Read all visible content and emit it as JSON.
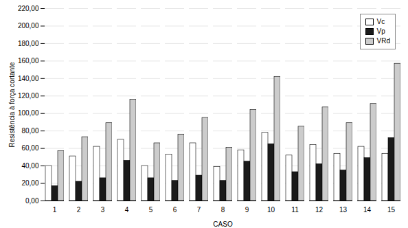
{
  "chart_data": {
    "type": "bar",
    "xlabel": "CASO",
    "ylabel": "Resistência à força cortante",
    "categories": [
      "1",
      "2",
      "3",
      "4",
      "5",
      "6",
      "7",
      "8",
      "9",
      "10",
      "11",
      "12",
      "13",
      "14",
      "15"
    ],
    "series": [
      {
        "name": "Vc",
        "color": "#ffffff",
        "values": [
          40,
          51,
          62,
          70,
          40,
          53,
          66,
          39,
          58,
          78,
          52,
          64,
          54,
          62,
          54
        ]
      },
      {
        "name": "Vp",
        "color": "#1a1a1a",
        "values": [
          17,
          22,
          26,
          46,
          26,
          23,
          29,
          23,
          45,
          65,
          33,
          42,
          35,
          49,
          72
        ]
      },
      {
        "name": "VRd",
        "color": "#cccccc",
        "values": [
          57,
          73,
          89,
          116,
          66,
          76,
          95,
          61,
          104,
          142,
          85,
          107,
          89,
          111,
          157
        ]
      }
    ],
    "ylim": [
      0,
      220
    ],
    "yticks": [
      {
        "value": 0,
        "label": "0,00"
      },
      {
        "value": 20,
        "label": "20,00"
      },
      {
        "value": 40,
        "label": "40,00"
      },
      {
        "value": 60,
        "label": "60,00"
      },
      {
        "value": 80,
        "label": "80,00"
      },
      {
        "value": 100,
        "label": "100,00"
      },
      {
        "value": 120,
        "label": "120,00"
      },
      {
        "value": 140,
        "label": "140,00"
      },
      {
        "value": 160,
        "label": "160,00"
      },
      {
        "value": 180,
        "label": "180,00"
      },
      {
        "value": 200,
        "label": "200,00"
      },
      {
        "value": 220,
        "label": "220,00"
      }
    ],
    "grid": true,
    "legend": "upper right"
  }
}
